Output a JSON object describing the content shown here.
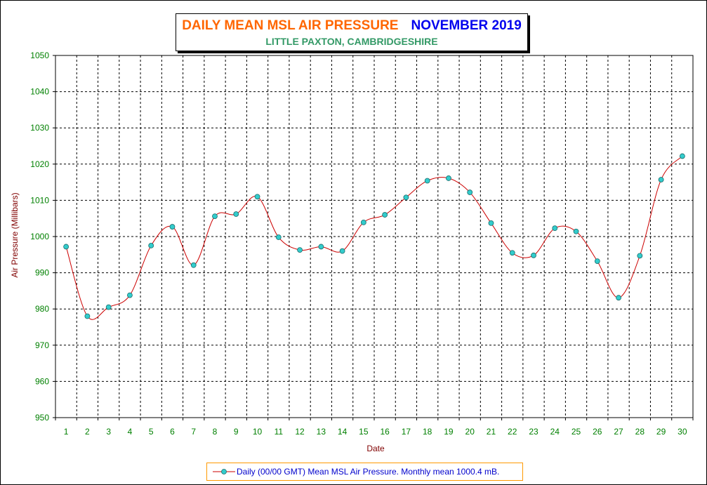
{
  "title": {
    "main": "DAILY MEAN MSL AIR PRESSURE",
    "month": "NOVEMBER 2019",
    "subtitle": "LITTLE PAXTON, CAMBRIDGESHIRE"
  },
  "legend": {
    "label": "Daily (00/00 GMT) Mean MSL Air Pressure. Monthly mean 1000.4 mB."
  },
  "colors": {
    "line": "#cc0000",
    "marker": "#33cccc",
    "tick_label": "#008000",
    "axis_label": "#800000",
    "title_main": "#ff6600",
    "title_month": "#0000ee",
    "subtitle": "#339966"
  },
  "chart_data": {
    "type": "line",
    "title": "DAILY MEAN MSL AIR PRESSURE  NOVEMBER 2019",
    "subtitle": "LITTLE PAXTON, CAMBRIDGESHIRE",
    "xlabel": "Date",
    "ylabel": "Air Pressure (Millibars)",
    "ylim": [
      950,
      1050
    ],
    "yticks": [
      950,
      960,
      970,
      980,
      990,
      1000,
      1010,
      1020,
      1030,
      1040,
      1050
    ],
    "grid": true,
    "legend_position": "bottom",
    "x": [
      1,
      2,
      3,
      4,
      5,
      6,
      7,
      8,
      9,
      10,
      11,
      12,
      13,
      14,
      15,
      16,
      17,
      18,
      19,
      20,
      21,
      22,
      23,
      24,
      25,
      26,
      27,
      28,
      29,
      30
    ],
    "series": [
      {
        "name": "Daily (00/00 GMT) Mean MSL Air Pressure. Monthly mean 1000.4 mB.",
        "values": [
          997.2,
          978.0,
          980.5,
          983.8,
          997.5,
          1002.7,
          992.1,
          1005.6,
          1006.2,
          1011.0,
          999.8,
          996.3,
          997.2,
          996.0,
          1003.9,
          1006.0,
          1010.8,
          1015.4,
          1016.1,
          1012.2,
          1003.7,
          995.5,
          994.8,
          1002.3,
          1001.4,
          993.2,
          983.1,
          994.7,
          1015.7,
          1022.2
        ]
      }
    ]
  }
}
